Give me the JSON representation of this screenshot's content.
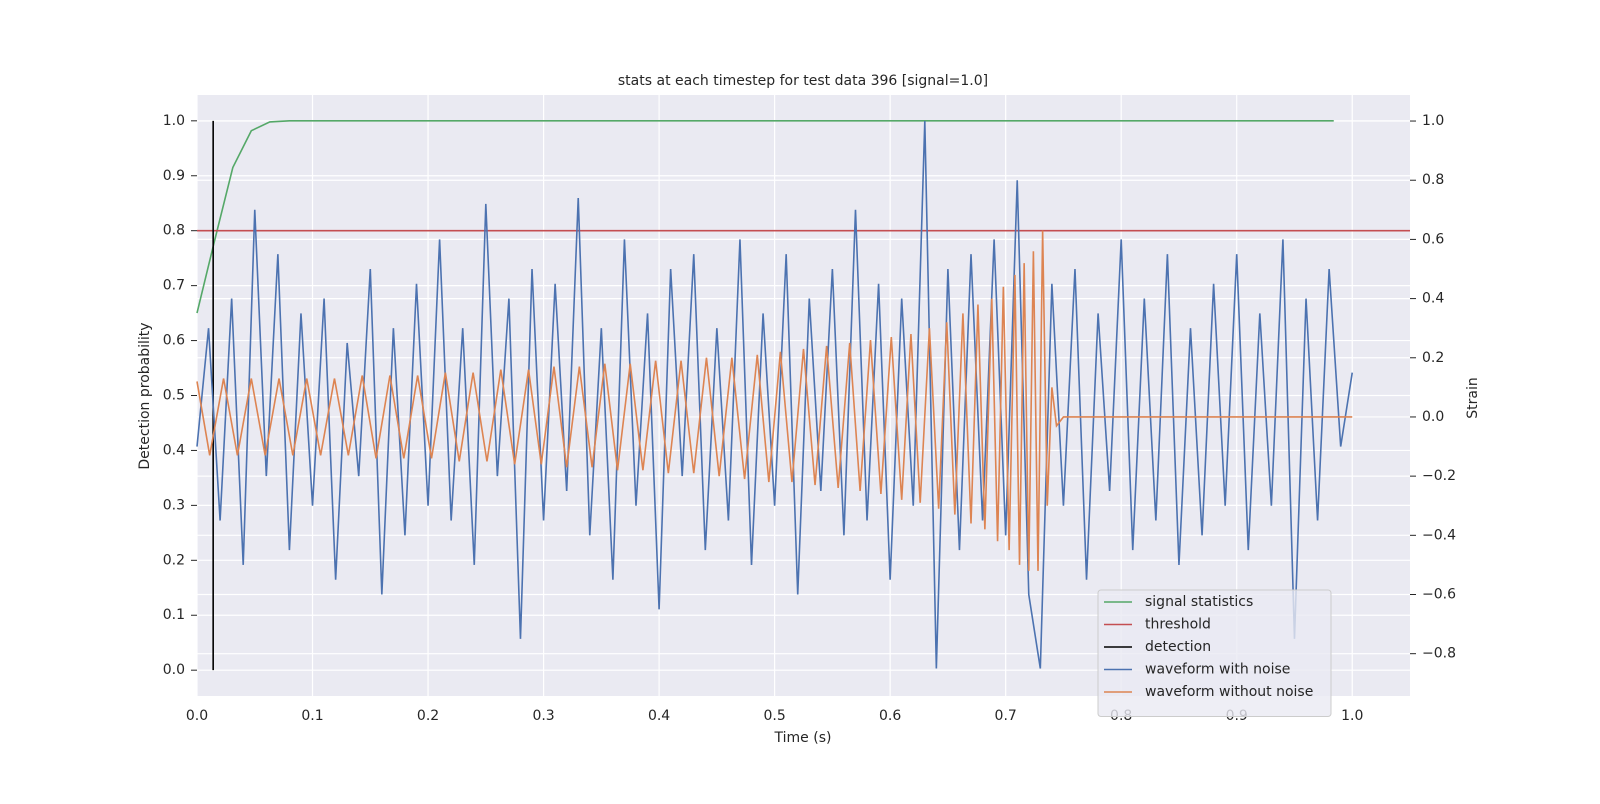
{
  "chart_data": {
    "type": "line",
    "title": "stats at each timestep for test data 396 [signal=1.0]",
    "x_label": "Time (s)",
    "y_label": "Detection probability",
    "y2_label": "Strain",
    "xlim": [
      0,
      1.05
    ],
    "ylim": [
      -0.047,
      1.047
    ],
    "y2lim": [
      -0.943,
      1.088
    ],
    "xticks": [
      {
        "value": 0,
        "label": "0.0"
      },
      0.1,
      0.2,
      0.3,
      0.4,
      0.5,
      0.6,
      0.7,
      0.8,
      0.9,
      {
        "value": 1,
        "label": "1.0"
      }
    ],
    "yticks": [
      {
        "value": 0,
        "label": "0.0"
      },
      0.1,
      0.2,
      0.3,
      0.4,
      0.5,
      0.6,
      0.7,
      0.8,
      0.9,
      {
        "value": 1,
        "label": "1.0"
      }
    ],
    "y2ticks": [
      {
        "value": -0.8,
        "label": "−0.8"
      },
      {
        "value": -0.6,
        "label": "−0.6"
      },
      {
        "value": -0.4,
        "label": "−0.4"
      },
      {
        "value": -0.2,
        "label": "−0.2"
      },
      {
        "value": 0,
        "label": "0.0"
      },
      0.2,
      0.4,
      0.6,
      0.8,
      {
        "value": 1,
        "label": "1.0"
      }
    ],
    "grid": true,
    "legend": "lower right",
    "series": [
      {
        "name": "signal statistics",
        "color": "#55a868",
        "x": [
          0,
          0.015,
          0.031,
          0.047,
          0.063,
          0.08,
          0.984
        ],
        "values": [
          0.65,
          0.78,
          0.915,
          0.982,
          0.998,
          1.0,
          1.0
        ]
      },
      {
        "name": "threshold",
        "color": "#c44e52",
        "x": [
          0,
          1.05
        ],
        "values": [
          0.8,
          0.8
        ]
      },
      {
        "name": "detection",
        "color": "#000000",
        "x": [
          0.014,
          0.014
        ],
        "values": [
          0,
          1
        ]
      },
      {
        "name": "waveform with noise",
        "color": "#4c72b0",
        "axis": "y2",
        "x": [
          0,
          0.01,
          0.02,
          0.03,
          0.04,
          0.05,
          0.06,
          0.07,
          0.08,
          0.09,
          0.1,
          0.11,
          0.12,
          0.13,
          0.14,
          0.15,
          0.16,
          0.17,
          0.18,
          0.19,
          0.2,
          0.21,
          0.22,
          0.23,
          0.24,
          0.25,
          0.26,
          0.27,
          0.28,
          0.29,
          0.3,
          0.31,
          0.32,
          0.33,
          0.34,
          0.35,
          0.36,
          0.37,
          0.38,
          0.39,
          0.4,
          0.41,
          0.42,
          0.43,
          0.44,
          0.45,
          0.46,
          0.47,
          0.48,
          0.49,
          0.5,
          0.51,
          0.52,
          0.53,
          0.54,
          0.55,
          0.56,
          0.57,
          0.58,
          0.59,
          0.6,
          0.61,
          0.62,
          0.63,
          0.64,
          0.65,
          0.66,
          0.67,
          0.68,
          0.69,
          0.7,
          0.71,
          0.72,
          0.73,
          0.74,
          0.75,
          0.76,
          0.77,
          0.78,
          0.79,
          0.8,
          0.81,
          0.82,
          0.83,
          0.84,
          0.85,
          0.86,
          0.87,
          0.88,
          0.89,
          0.9,
          0.91,
          0.92,
          0.93,
          0.94,
          0.95,
          0.96,
          0.97,
          0.98,
          0.99,
          1.0
        ],
        "values": [
          -0.1,
          0.3,
          -0.35,
          0.4,
          -0.5,
          0.7,
          -0.2,
          0.55,
          -0.45,
          0.35,
          -0.3,
          0.4,
          -0.55,
          0.25,
          -0.2,
          0.5,
          -0.6,
          0.3,
          -0.4,
          0.45,
          -0.3,
          0.6,
          -0.35,
          0.3,
          -0.5,
          0.72,
          -0.2,
          0.4,
          -0.75,
          0.5,
          -0.35,
          0.45,
          -0.25,
          0.74,
          -0.4,
          0.3,
          -0.55,
          0.6,
          -0.3,
          0.35,
          -0.65,
          0.5,
          -0.2,
          0.55,
          -0.45,
          0.3,
          -0.35,
          0.6,
          -0.5,
          0.35,
          -0.3,
          0.55,
          -0.6,
          0.4,
          -0.25,
          0.5,
          -0.4,
          0.7,
          -0.35,
          0.45,
          -0.55,
          0.4,
          -0.3,
          1.0,
          -0.85,
          0.5,
          -0.45,
          0.55,
          -0.35,
          0.6,
          -0.4,
          0.8,
          -0.6,
          -0.85,
          0.45,
          -0.3,
          0.5,
          -0.55,
          0.35,
          -0.25,
          0.6,
          -0.45,
          0.4,
          -0.35,
          0.55,
          -0.5,
          0.3,
          -0.4,
          0.45,
          -0.3,
          0.55,
          -0.45,
          0.35,
          -0.3,
          0.6,
          -0.75,
          0.4,
          -0.35,
          0.5,
          -0.1,
          0.15
        ]
      },
      {
        "name": "waveform without noise",
        "color": "#dd8452",
        "axis": "y2",
        "x": [
          0,
          0.011,
          0.023,
          0.035,
          0.047,
          0.059,
          0.071,
          0.083,
          0.095,
          0.107,
          0.119,
          0.131,
          0.143,
          0.155,
          0.167,
          0.179,
          0.191,
          0.203,
          0.215,
          0.227,
          0.239,
          0.251,
          0.263,
          0.275,
          0.287,
          0.298,
          0.309,
          0.32,
          0.331,
          0.342,
          0.353,
          0.364,
          0.375,
          0.386,
          0.397,
          0.408,
          0.419,
          0.43,
          0.441,
          0.452,
          0.463,
          0.474,
          0.485,
          0.495,
          0.505,
          0.515,
          0.525,
          0.535,
          0.545,
          0.555,
          0.565,
          0.574,
          0.583,
          0.592,
          0.601,
          0.61,
          0.618,
          0.626,
          0.634,
          0.642,
          0.649,
          0.656,
          0.663,
          0.67,
          0.676,
          0.682,
          0.688,
          0.693,
          0.698,
          0.703,
          0.708,
          0.712,
          0.716,
          0.72,
          0.724,
          0.728,
          0.732,
          0.736,
          0.74,
          0.744,
          0.75,
          1.0
        ],
        "values": [
          0.12,
          -0.13,
          0.13,
          -0.13,
          0.13,
          -0.13,
          0.13,
          -0.13,
          0.13,
          -0.13,
          0.13,
          -0.13,
          0.14,
          -0.14,
          0.14,
          -0.14,
          0.14,
          -0.14,
          0.15,
          -0.15,
          0.15,
          -0.15,
          0.16,
          -0.16,
          0.16,
          -0.16,
          0.17,
          -0.17,
          0.17,
          -0.17,
          0.18,
          -0.18,
          0.18,
          -0.18,
          0.19,
          -0.19,
          0.19,
          -0.19,
          0.2,
          -0.2,
          0.2,
          -0.21,
          0.21,
          -0.22,
          0.22,
          -0.22,
          0.23,
          -0.23,
          0.24,
          -0.24,
          0.25,
          -0.25,
          0.26,
          -0.26,
          0.27,
          -0.28,
          0.28,
          -0.29,
          0.3,
          -0.31,
          0.32,
          -0.33,
          0.35,
          -0.36,
          0.38,
          -0.38,
          0.4,
          -0.42,
          0.44,
          -0.45,
          0.48,
          -0.5,
          0.52,
          -0.52,
          0.56,
          -0.52,
          0.63,
          -0.3,
          0.1,
          -0.03,
          0,
          0
        ]
      }
    ]
  }
}
